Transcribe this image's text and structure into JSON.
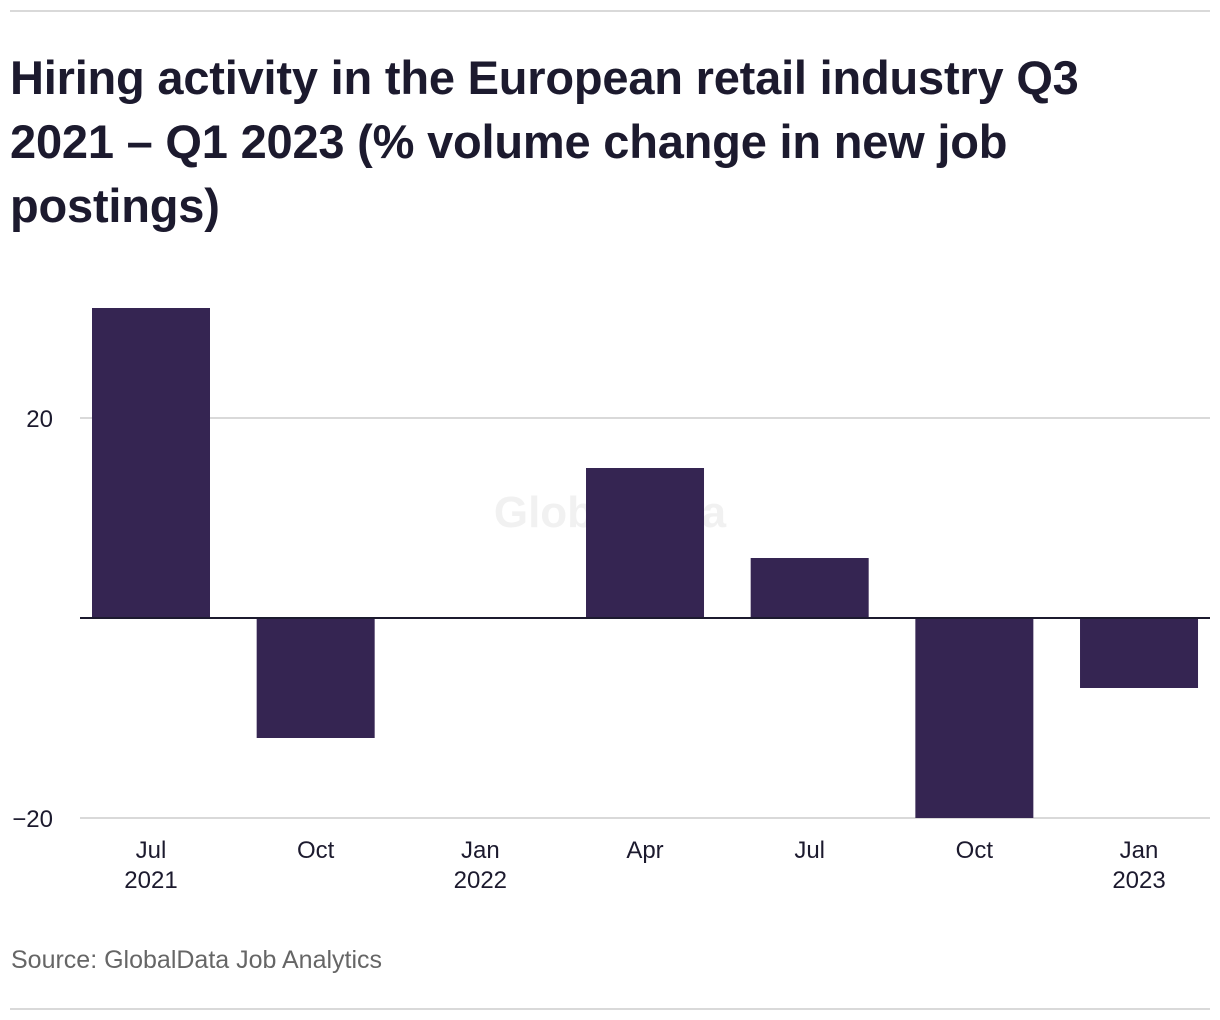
{
  "title": "Hiring activity in the European retail industry Q3 2021 – Q1 2023 (% volume change in new job postings)",
  "source": "Source: GlobalData Job Analytics",
  "watermark": "GlobalData",
  "colors": {
    "bar": "#352552",
    "grid": "#d9d9d9",
    "zero_line": "#1c1a2e",
    "text": "#1c1a2e",
    "source_text": "#666666"
  },
  "chart_data": {
    "type": "bar",
    "title": "Hiring activity in the European retail industry Q3 2021 – Q1 2023 (% volume change in new job postings)",
    "xlabel": "",
    "ylabel": "",
    "categories": [
      "Jul 2021",
      "Oct 2021",
      "Jan 2022",
      "Apr 2022",
      "Jul 2022",
      "Oct 2022",
      "Jan 2023"
    ],
    "x_tick_labels": [
      [
        "Jul",
        "2021"
      ],
      [
        "Oct"
      ],
      [
        "Jan",
        "2022"
      ],
      [
        "Apr"
      ],
      [
        "Jul"
      ],
      [
        "Oct"
      ],
      [
        "Jan",
        "2023"
      ]
    ],
    "values": [
      31,
      -12,
      0,
      15,
      6,
      -20,
      -7
    ],
    "ylim": [
      -20,
      31
    ],
    "yticks": [
      20,
      -20
    ],
    "ytick_labels": [
      "20",
      "−20"
    ],
    "grid": true,
    "legend": "none"
  }
}
